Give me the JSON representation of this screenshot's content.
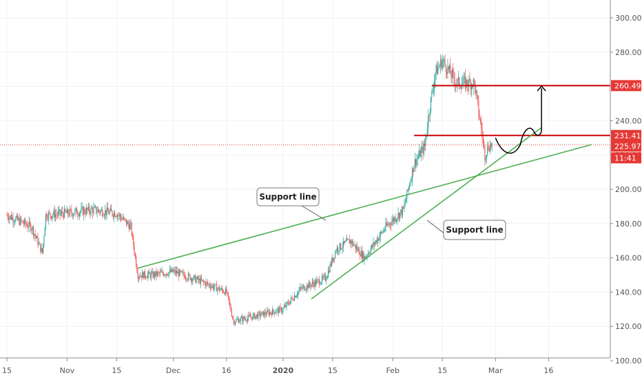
{
  "chart_data": {
    "type": "candlestick",
    "colors": {
      "up": "#26a69a",
      "down": "#ef5350",
      "support_line": "#4caf50",
      "resistance_line": "#cc0000",
      "price_badge": "#e53935",
      "projection_arrow": "#000000",
      "grid": "#eef1f5",
      "axis_text": "#555555"
    },
    "y_axis": {
      "min": 100,
      "max": 310,
      "ticks": [
        "100.00",
        "120.00",
        "140.00",
        "160.00",
        "180.00",
        "200.00",
        "220.00",
        "240.00",
        "260.00",
        "280.00",
        "300.00"
      ]
    },
    "x_axis": {
      "labels": [
        "15",
        "Nov",
        "15",
        "Dec",
        "16",
        "2020",
        "15",
        "Feb",
        "15",
        "Mar",
        "16"
      ],
      "bold_label": "2020"
    },
    "price_levels": [
      {
        "label": "260.49",
        "value": 260.49,
        "kind": "resistance"
      },
      {
        "label": "231.41",
        "value": 231.41,
        "kind": "resistance"
      }
    ],
    "last_price": {
      "label": "225.97",
      "value": 225.97,
      "countdown": "11:41"
    },
    "annotations": [
      {
        "text": "Support line"
      },
      {
        "text": "Support line"
      }
    ],
    "trendlines": [
      {
        "name": "support-line-1",
        "start": {
          "date": "2019-11-21",
          "value": 154
        },
        "end": {
          "date": "2020-03-28",
          "value": 226
        }
      },
      {
        "name": "support-line-2",
        "start": {
          "date": "2020-01-09",
          "value": 136
        },
        "end": {
          "date": "2020-03-14",
          "value": 236
        }
      }
    ],
    "ohlc_anchor_closes": [
      {
        "date": "2019-10-15",
        "close": 185
      },
      {
        "date": "2019-10-22",
        "close": 178
      },
      {
        "date": "2019-10-25",
        "close": 163
      },
      {
        "date": "2019-10-26",
        "close": 185
      },
      {
        "date": "2019-11-01",
        "close": 186
      },
      {
        "date": "2019-11-08",
        "close": 188
      },
      {
        "date": "2019-11-15",
        "close": 186
      },
      {
        "date": "2019-11-19",
        "close": 178
      },
      {
        "date": "2019-11-21",
        "close": 150
      },
      {
        "date": "2019-11-25",
        "close": 150
      },
      {
        "date": "2019-12-01",
        "close": 152
      },
      {
        "date": "2019-12-08",
        "close": 147
      },
      {
        "date": "2019-12-16",
        "close": 140
      },
      {
        "date": "2019-12-18",
        "close": 123
      },
      {
        "date": "2020-01-01",
        "close": 130
      },
      {
        "date": "2020-01-06",
        "close": 142
      },
      {
        "date": "2020-01-13",
        "close": 148
      },
      {
        "date": "2020-01-16",
        "close": 165
      },
      {
        "date": "2020-01-20",
        "close": 170
      },
      {
        "date": "2020-01-24",
        "close": 160
      },
      {
        "date": "2020-01-30",
        "close": 178
      },
      {
        "date": "2020-02-04",
        "close": 188
      },
      {
        "date": "2020-02-07",
        "close": 215
      },
      {
        "date": "2020-02-10",
        "close": 225
      },
      {
        "date": "2020-02-11",
        "close": 242
      },
      {
        "date": "2020-02-13",
        "close": 268
      },
      {
        "date": "2020-02-15",
        "close": 275
      },
      {
        "date": "2020-02-19",
        "close": 262
      },
      {
        "date": "2020-02-22",
        "close": 262
      },
      {
        "date": "2020-02-24",
        "close": 262
      },
      {
        "date": "2020-02-26",
        "close": 235
      },
      {
        "date": "2020-02-27",
        "close": 220
      },
      {
        "date": "2020-02-28",
        "close": 225
      },
      {
        "date": "2020-02-29",
        "close": 226
      }
    ]
  }
}
